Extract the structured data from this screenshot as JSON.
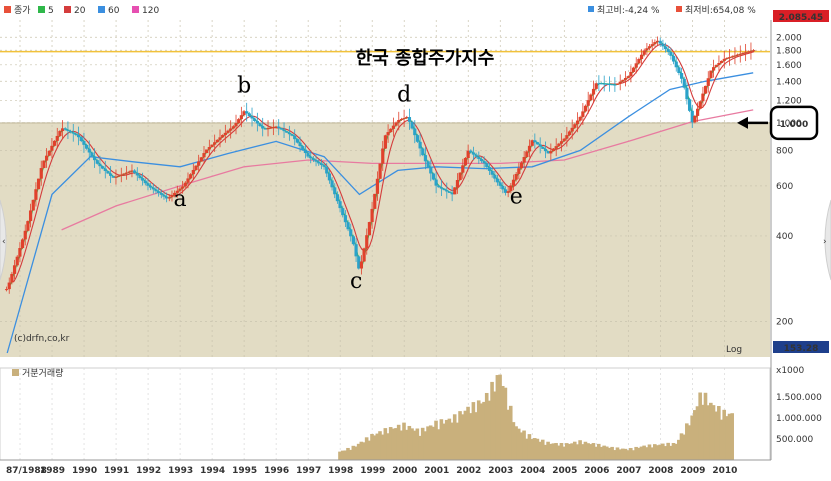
{
  "legend": [
    {
      "label": "종가",
      "color": "#e8503a"
    },
    {
      "label": "5",
      "color": "#2fb84a"
    },
    {
      "label": "20",
      "color": "#d43c3c"
    },
    {
      "label": "60",
      "color": "#3b8fe0"
    },
    {
      "label": "120",
      "color": "#e64fb1"
    }
  ],
  "stats": {
    "from_high": "최고비:-4,24 %",
    "from_low": "최저비:654,08 %",
    "high_badge": "2.085.45",
    "low_badge": "153.28"
  },
  "watermark": "(c)drfn,co,kr",
  "scale_label": "Log",
  "volume_label": "거분거래량",
  "volume_unit": "x1000",
  "chart_data": {
    "type": "candlestick",
    "title": "한국 종합주가지수",
    "y_scale": "log",
    "ylim": [
      153.28,
      2085.45
    ],
    "y_ticks": [
      "2.000",
      "1.800",
      "1.600",
      "1.400",
      "1.200",
      "1.000",
      "800",
      "600",
      "400",
      "200"
    ],
    "y_tick_values": [
      2000,
      1800,
      1600,
      1400,
      1200,
      1000,
      800,
      600,
      400,
      200
    ],
    "x_ticks": [
      "87/1988",
      "1989",
      "1990",
      "1991",
      "1992",
      "1993",
      "1994",
      "1995",
      "1996",
      "1997",
      "1998",
      "1999",
      "2000",
      "2001",
      "2002",
      "2003",
      "2004",
      "2005",
      "2006",
      "2007",
      "2008",
      "2009",
      "2010"
    ],
    "x_range": [
      1987.5,
      2011.3
    ],
    "reference_line": 1780,
    "path": [
      [
        1987.6,
        260
      ],
      [
        1988.2,
        430
      ],
      [
        1988.7,
        720
      ],
      [
        1989.3,
        960
      ],
      [
        1989.8,
        900
      ],
      [
        1990.4,
        720
      ],
      [
        1990.9,
        640
      ],
      [
        1991.5,
        680
      ],
      [
        1992.0,
        600
      ],
      [
        1992.6,
        540
      ],
      [
        1993.1,
        600
      ],
      [
        1993.8,
        800
      ],
      [
        1994.3,
        900
      ],
      [
        1994.7,
        980
      ],
      [
        1995.0,
        1100
      ],
      [
        1995.6,
        950
      ],
      [
        1996.0,
        970
      ],
      [
        1996.5,
        900
      ],
      [
        1997.0,
        760
      ],
      [
        1997.5,
        700
      ],
      [
        1998.0,
        500
      ],
      [
        1998.4,
        380
      ],
      [
        1998.6,
        300
      ],
      [
        1999.0,
        500
      ],
      [
        1999.4,
        900
      ],
      [
        1999.8,
        1020
      ],
      [
        2000.1,
        1050
      ],
      [
        2000.6,
        760
      ],
      [
        2001.0,
        600
      ],
      [
        2001.5,
        560
      ],
      [
        2002.0,
        800
      ],
      [
        2002.5,
        720
      ],
      [
        2002.9,
        620
      ],
      [
        2003.2,
        560
      ],
      [
        2003.6,
        700
      ],
      [
        2004.0,
        870
      ],
      [
        2004.5,
        780
      ],
      [
        2005.0,
        880
      ],
      [
        2005.5,
        1050
      ],
      [
        2006.0,
        1380
      ],
      [
        2006.6,
        1360
      ],
      [
        2007.0,
        1460
      ],
      [
        2007.5,
        1800
      ],
      [
        2007.9,
        1950
      ],
      [
        2008.3,
        1750
      ],
      [
        2008.7,
        1400
      ],
      [
        2009.0,
        1000
      ],
      [
        2009.2,
        1150
      ],
      [
        2009.6,
        1550
      ],
      [
        2010.0,
        1680
      ],
      [
        2010.5,
        1750
      ],
      [
        2010.9,
        1800
      ]
    ],
    "ma60_path": [
      [
        1987.6,
        155
      ],
      [
        1989.0,
        560
      ],
      [
        1990.2,
        760
      ],
      [
        1991.5,
        730
      ],
      [
        1993.0,
        700
      ],
      [
        1994.5,
        780
      ],
      [
        1996.0,
        860
      ],
      [
        1997.5,
        760
      ],
      [
        1998.6,
        560
      ],
      [
        1999.8,
        680
      ],
      [
        2001.0,
        700
      ],
      [
        2002.5,
        690
      ],
      [
        2004.0,
        700
      ],
      [
        2005.5,
        800
      ],
      [
        2007.0,
        1050
      ],
      [
        2008.3,
        1310
      ],
      [
        2009.4,
        1400
      ],
      [
        2010.9,
        1500
      ]
    ],
    "ma120_path": [
      [
        1989.3,
        420
      ],
      [
        1991.0,
        510
      ],
      [
        1993.0,
        600
      ],
      [
        1995.0,
        700
      ],
      [
        1997.0,
        740
      ],
      [
        1999.0,
        720
      ],
      [
        2001.0,
        720
      ],
      [
        2003.0,
        720
      ],
      [
        2005.0,
        740
      ],
      [
        2007.0,
        860
      ],
      [
        2009.0,
        1010
      ],
      [
        2010.9,
        1110
      ]
    ],
    "annotations": [
      {
        "label": "a",
        "x": 1993.0,
        "y": 510
      },
      {
        "label": "b",
        "x": 1995.0,
        "y": 1280
      },
      {
        "label": "c",
        "x": 1998.5,
        "y": 262
      },
      {
        "label": "d",
        "x": 2000.0,
        "y": 1190
      },
      {
        "label": "e",
        "x": 2003.5,
        "y": 520
      }
    ],
    "callout": {
      "label": "1.000",
      "value": 1000
    },
    "volume_ticks": [
      "1.500.000",
      "1.000.000",
      "500.000"
    ],
    "volume_tick_values": [
      1500000,
      1000000,
      500000
    ],
    "volume": [
      [
        1998.0,
        200000
      ],
      [
        1998.5,
        350000
      ],
      [
        1999.0,
        600000
      ],
      [
        1999.5,
        750000
      ],
      [
        2000.0,
        850000
      ],
      [
        2000.5,
        700000
      ],
      [
        2001.0,
        900000
      ],
      [
        2001.5,
        1000000
      ],
      [
        2002.0,
        1250000
      ],
      [
        2002.5,
        1450000
      ],
      [
        2003.0,
        2100000
      ],
      [
        2003.5,
        800000
      ],
      [
        2004.0,
        550000
      ],
      [
        2004.5,
        420000
      ],
      [
        2005.0,
        380000
      ],
      [
        2005.5,
        450000
      ],
      [
        2006.0,
        380000
      ],
      [
        2006.5,
        300000
      ],
      [
        2007.0,
        260000
      ],
      [
        2007.5,
        340000
      ],
      [
        2008.0,
        380000
      ],
      [
        2008.5,
        400000
      ],
      [
        2009.0,
        1050000
      ],
      [
        2009.3,
        1650000
      ],
      [
        2009.6,
        1350000
      ],
      [
        2010.0,
        1150000
      ],
      [
        2010.3,
        1100000
      ]
    ]
  }
}
